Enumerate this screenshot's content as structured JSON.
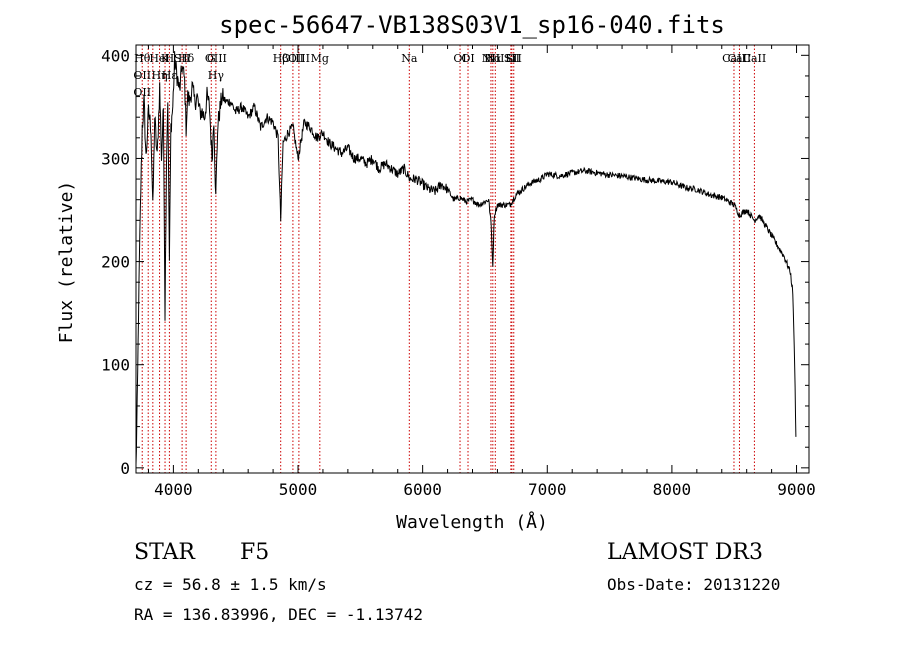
{
  "chart_data": {
    "type": "line",
    "title": "spec-56647-VB138S03V1_sp16-040.fits",
    "xlabel": "Wavelength (Å)",
    "ylabel": "Flux (relative)",
    "xlim": [
      3700,
      9100
    ],
    "ylim": [
      -5,
      410
    ],
    "x_ticks": [
      4000,
      5000,
      6000,
      7000,
      8000,
      9000
    ],
    "x_tick_labels": [
      "4000",
      "5000",
      "6000",
      "7000",
      "8000",
      "9000"
    ],
    "y_ticks": [
      0,
      100,
      200,
      300,
      400
    ],
    "y_tick_labels": [
      "0",
      "100",
      "200",
      "300",
      "400"
    ],
    "series": [
      {
        "name": "flux",
        "color": "#000000",
        "x": [
          3700,
          3710,
          3720,
          3735,
          3750,
          3765,
          3780,
          3800,
          3820,
          3835,
          3850,
          3870,
          3890,
          3905,
          3920,
          3933,
          3945,
          3955,
          3968,
          3980,
          3995,
          4010,
          4030,
          4050,
          4070,
          4090,
          4102,
          4115,
          4130,
          4150,
          4170,
          4190,
          4210,
          4230,
          4250,
          4270,
          4290,
          4310,
          4325,
          4340,
          4355,
          4370,
          4390,
          4420,
          4460,
          4500,
          4550,
          4600,
          4650,
          4700,
          4750,
          4800,
          4840,
          4861,
          4880,
          4920,
          4960,
          5000,
          5050,
          5100,
          5150,
          5200,
          5250,
          5300,
          5350,
          5400,
          5450,
          5500,
          5550,
          5600,
          5650,
          5700,
          5750,
          5800,
          5850,
          5900,
          5950,
          6000,
          6050,
          6100,
          6150,
          6200,
          6250,
          6300,
          6350,
          6400,
          6450,
          6500,
          6530,
          6550,
          6563,
          6575,
          6600,
          6650,
          6700,
          6750,
          6800,
          6850,
          6900,
          6950,
          7000,
          7100,
          7200,
          7300,
          7400,
          7500,
          7600,
          7700,
          7800,
          7900,
          8000,
          8100,
          8200,
          8300,
          8400,
          8500,
          8542,
          8600,
          8662,
          8700,
          8750,
          8800,
          8850,
          8900,
          8950,
          8970,
          8985,
          8995
        ],
        "values": [
          0,
          60,
          150,
          250,
          330,
          355,
          300,
          345,
          330,
          250,
          340,
          300,
          370,
          300,
          350,
          150,
          300,
          360,
          200,
          330,
          350,
          395,
          380,
          365,
          390,
          375,
          330,
          360,
          355,
          370,
          355,
          360,
          345,
          345,
          340,
          360,
          350,
          300,
          340,
          260,
          330,
          345,
          360,
          355,
          355,
          345,
          350,
          340,
          350,
          330,
          340,
          335,
          320,
          240,
          315,
          325,
          330,
          300,
          335,
          330,
          320,
          325,
          315,
          310,
          305,
          310,
          300,
          300,
          295,
          300,
          290,
          295,
          290,
          285,
          290,
          280,
          280,
          275,
          270,
          268,
          275,
          270,
          260,
          262,
          258,
          260,
          255,
          258,
          260,
          235,
          195,
          245,
          255,
          255,
          255,
          265,
          270,
          275,
          278,
          280,
          285,
          283,
          286,
          288,
          286,
          284,
          283,
          281,
          279,
          278,
          277,
          272,
          270,
          265,
          262,
          255,
          245,
          250,
          240,
          245,
          235,
          225,
          215,
          205,
          190,
          170,
          100,
          30
        ]
      }
    ],
    "line_markers": [
      {
        "x": 3750,
        "labels": [
          "Hθ",
          "OII",
          "OII"
        ]
      },
      {
        "x": 3798,
        "labels": []
      },
      {
        "x": 3835,
        "labels": []
      },
      {
        "x": 3889,
        "labels": [
          "HeI",
          "Hη"
        ]
      },
      {
        "x": 3933,
        "labels": [
          "K"
        ]
      },
      {
        "x": 3968,
        "labels": [
          "H",
          "Hε"
        ]
      },
      {
        "x": 4070,
        "labels": [
          "SII"
        ]
      },
      {
        "x": 4102,
        "labels": [
          "Hδ"
        ]
      },
      {
        "x": 4304,
        "labels": [
          "G"
        ]
      },
      {
        "x": 4341,
        "labels": [
          "OIII",
          "Hγ"
        ]
      },
      {
        "x": 4861,
        "labels": [
          "Hβ"
        ]
      },
      {
        "x": 4959,
        "labels": [
          "OIII"
        ]
      },
      {
        "x": 5007,
        "labels": [
          "OIII"
        ]
      },
      {
        "x": 5175,
        "labels": [
          "Mg"
        ]
      },
      {
        "x": 5893,
        "labels": [
          "Na"
        ]
      },
      {
        "x": 6300,
        "labels": [
          "OI"
        ]
      },
      {
        "x": 6364,
        "labels": [
          "OI"
        ]
      },
      {
        "x": 6548,
        "labels": [
          "NII"
        ]
      },
      {
        "x": 6563,
        "labels": [
          "Hα"
        ]
      },
      {
        "x": 6583,
        "labels": [
          "NII"
        ]
      },
      {
        "x": 6708,
        "labels": [
          "Li"
        ]
      },
      {
        "x": 6716,
        "labels": [
          "SII"
        ]
      },
      {
        "x": 6731,
        "labels": [
          "SII"
        ]
      },
      {
        "x": 8498,
        "labels": [
          "CaII"
        ]
      },
      {
        "x": 8542,
        "labels": [
          "CaII"
        ]
      },
      {
        "x": 8662,
        "labels": [
          "CaII"
        ]
      }
    ],
    "marker_color": "#cc0000",
    "annotation_texts": [
      "Hθ",
      "OII",
      "OII",
      "HeI",
      "Hη",
      "K",
      "H",
      "Hε",
      "SII",
      "Hδ",
      "G",
      "OIII",
      "Hγ",
      "Hβ",
      "OIII",
      "OIII",
      "Mg",
      "Na",
      "OI",
      "OI",
      "NII",
      "Hα",
      "NII",
      "Li",
      "SII",
      "SII",
      "CaII",
      "CaII",
      "CaII"
    ]
  },
  "info": {
    "object_class": "STAR",
    "subclass": "F5",
    "survey": "LAMOST DR3",
    "redshift": "cz = 56.8 ± 1.5 km/s",
    "obs_date": "Obs-Date: 20131220",
    "coords": "RA = 136.83996, DEC =  -1.13742"
  }
}
